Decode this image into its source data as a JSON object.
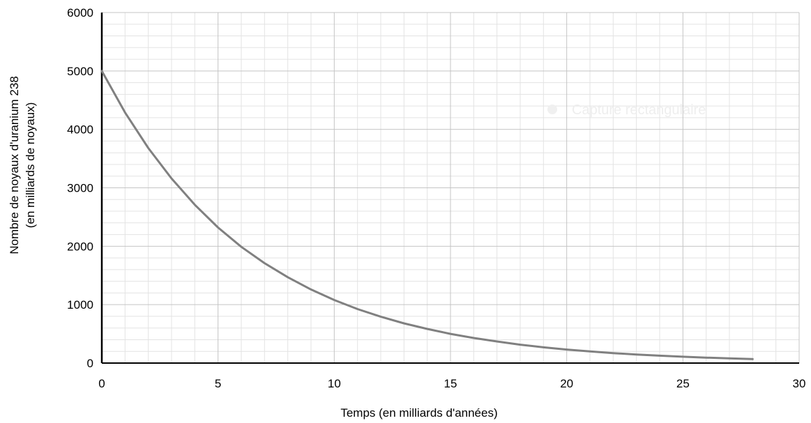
{
  "chart_data": {
    "type": "line",
    "title": "",
    "xlabel": "Temps (en milliards d'années)",
    "ylabel": [
      "Nombre de noyaux d'uranium  238",
      "(en milliards de noyaux)"
    ],
    "xlim": [
      0,
      30
    ],
    "ylim": [
      0,
      6000
    ],
    "x_major_ticks": [
      0,
      5,
      10,
      15,
      20,
      25,
      30
    ],
    "y_major_ticks": [
      0,
      1000,
      2000,
      3000,
      4000,
      5000,
      6000
    ],
    "x_tick_labels": [
      "0",
      "5",
      "10",
      "15",
      "20",
      "25",
      "30"
    ],
    "y_tick_labels": [
      "0",
      "1000",
      "2000",
      "3000",
      "4000",
      "5000",
      "6000"
    ],
    "x_minor_step": 1,
    "y_minor_step": 200,
    "grid": true,
    "legend": "none",
    "series": [
      {
        "color": "#808080",
        "x": [
          0,
          1,
          2,
          3,
          4,
          5,
          6,
          7,
          8,
          9,
          10,
          11,
          12,
          13,
          14,
          15,
          16,
          17,
          18,
          19,
          20,
          21,
          22,
          23,
          24,
          25,
          26,
          27,
          28
        ],
        "y": [
          5000,
          4290,
          3680,
          3160,
          2710,
          2320,
          1990,
          1710,
          1470,
          1260,
          1080,
          925,
          795,
          680,
          585,
          500,
          430,
          370,
          315,
          270,
          232,
          200,
          170,
          147,
          126,
          108,
          93,
          80,
          68
        ]
      }
    ]
  },
  "watermark": {
    "text": "Capture rectangulaire",
    "color": "#eeeeee"
  }
}
